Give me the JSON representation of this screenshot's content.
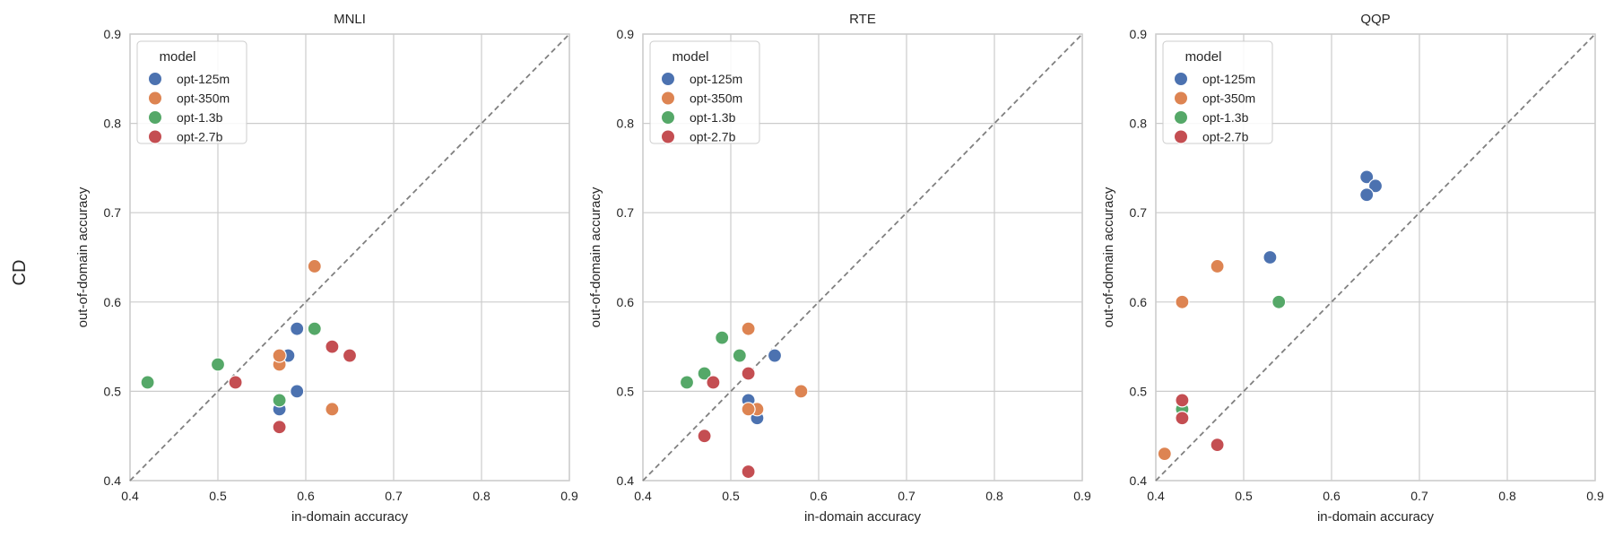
{
  "figure": {
    "row_label": "CD"
  },
  "colors": {
    "opt-125m": "#4c72b0",
    "opt-350m": "#dd8452",
    "opt-1.3b": "#55a868",
    "opt-2.7b": "#c44e52",
    "grid": "#cccccc",
    "diagonal": "#808080",
    "text": "#262626"
  },
  "chart_data": [
    {
      "type": "scatter",
      "title": "MNLI",
      "xlabel": "in-domain accuracy",
      "ylabel": "out-of-domain accuracy",
      "xlim": [
        0.4,
        0.9
      ],
      "ylim": [
        0.4,
        0.9
      ],
      "xticks": [
        "0.4",
        "0.5",
        "0.6",
        "0.7",
        "0.8",
        "0.9"
      ],
      "yticks": [
        "0.4",
        "0.5",
        "0.6",
        "0.7",
        "0.8",
        "0.9"
      ],
      "grid": true,
      "diagonal": true,
      "legend": {
        "title": "model",
        "position": "upper-left",
        "entries": [
          "opt-125m",
          "opt-350m",
          "opt-1.3b",
          "opt-2.7b"
        ]
      },
      "series": [
        {
          "name": "opt-125m",
          "points": [
            [
              0.58,
              0.54
            ],
            [
              0.59,
              0.57
            ],
            [
              0.59,
              0.5
            ],
            [
              0.57,
              0.48
            ]
          ]
        },
        {
          "name": "opt-350m",
          "points": [
            [
              0.61,
              0.64
            ],
            [
              0.57,
              0.53
            ],
            [
              0.57,
              0.54
            ],
            [
              0.63,
              0.48
            ]
          ]
        },
        {
          "name": "opt-1.3b",
          "points": [
            [
              0.42,
              0.51
            ],
            [
              0.5,
              0.53
            ],
            [
              0.61,
              0.57
            ],
            [
              0.57,
              0.49
            ]
          ]
        },
        {
          "name": "opt-2.7b",
          "points": [
            [
              0.52,
              0.51
            ],
            [
              0.63,
              0.55
            ],
            [
              0.65,
              0.54
            ],
            [
              0.57,
              0.46
            ]
          ]
        }
      ]
    },
    {
      "type": "scatter",
      "title": "RTE",
      "xlabel": "in-domain accuracy",
      "ylabel": "out-of-domain accuracy",
      "xlim": [
        0.4,
        0.9
      ],
      "ylim": [
        0.4,
        0.9
      ],
      "xticks": [
        "0.4",
        "0.5",
        "0.6",
        "0.7",
        "0.8",
        "0.9"
      ],
      "yticks": [
        "0.4",
        "0.5",
        "0.6",
        "0.7",
        "0.8",
        "0.9"
      ],
      "grid": true,
      "diagonal": true,
      "legend": {
        "title": "model",
        "position": "upper-left",
        "entries": [
          "opt-125m",
          "opt-350m",
          "opt-1.3b",
          "opt-2.7b"
        ]
      },
      "series": [
        {
          "name": "opt-125m",
          "points": [
            [
              0.55,
              0.54
            ],
            [
              0.52,
              0.49
            ],
            [
              0.53,
              0.47
            ]
          ]
        },
        {
          "name": "opt-350m",
          "points": [
            [
              0.52,
              0.57
            ],
            [
              0.58,
              0.5
            ],
            [
              0.53,
              0.48
            ],
            [
              0.52,
              0.48
            ]
          ]
        },
        {
          "name": "opt-1.3b",
          "points": [
            [
              0.45,
              0.51
            ],
            [
              0.47,
              0.52
            ],
            [
              0.49,
              0.56
            ],
            [
              0.51,
              0.54
            ]
          ]
        },
        {
          "name": "opt-2.7b",
          "points": [
            [
              0.48,
              0.51
            ],
            [
              0.52,
              0.52
            ],
            [
              0.47,
              0.45
            ],
            [
              0.52,
              0.41
            ]
          ]
        }
      ]
    },
    {
      "type": "scatter",
      "title": "QQP",
      "xlabel": "in-domain accuracy",
      "ylabel": "out-of-domain accuracy",
      "xlim": [
        0.4,
        0.9
      ],
      "ylim": [
        0.4,
        0.9
      ],
      "xticks": [
        "0.4",
        "0.5",
        "0.6",
        "0.7",
        "0.8",
        "0.9"
      ],
      "yticks": [
        "0.4",
        "0.5",
        "0.6",
        "0.7",
        "0.8",
        "0.9"
      ],
      "grid": true,
      "diagonal": true,
      "legend": {
        "title": "model",
        "position": "upper-left",
        "entries": [
          "opt-125m",
          "opt-350m",
          "opt-1.3b",
          "opt-2.7b"
        ]
      },
      "series": [
        {
          "name": "opt-125m",
          "points": [
            [
              0.64,
              0.74
            ],
            [
              0.65,
              0.73
            ],
            [
              0.64,
              0.72
            ],
            [
              0.53,
              0.65
            ]
          ]
        },
        {
          "name": "opt-350m",
          "points": [
            [
              0.47,
              0.64
            ],
            [
              0.43,
              0.6
            ],
            [
              0.41,
              0.43
            ]
          ]
        },
        {
          "name": "opt-1.3b",
          "points": [
            [
              0.54,
              0.6
            ],
            [
              0.43,
              0.48
            ]
          ]
        },
        {
          "name": "opt-2.7b",
          "points": [
            [
              0.43,
              0.49
            ],
            [
              0.43,
              0.47
            ],
            [
              0.47,
              0.44
            ]
          ]
        }
      ]
    }
  ]
}
